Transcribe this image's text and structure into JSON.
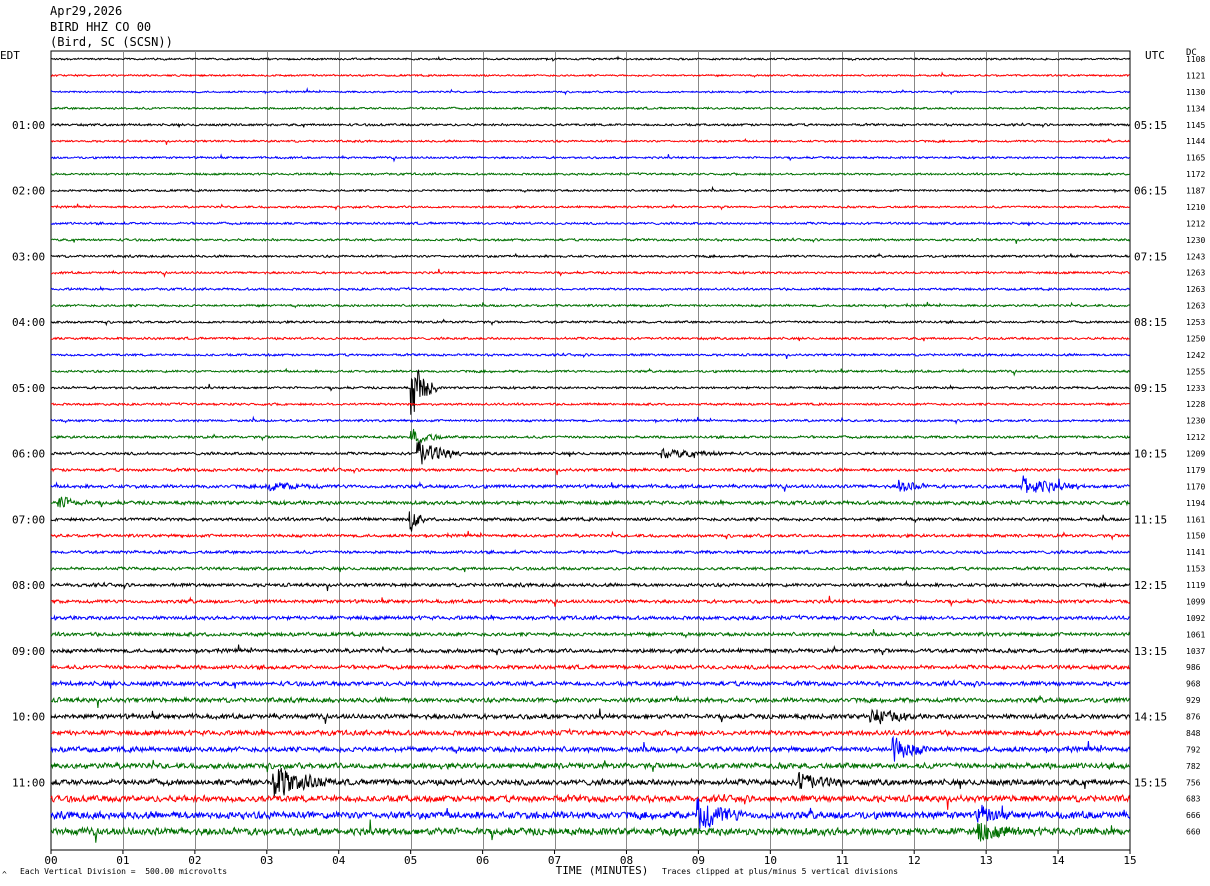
{
  "header": {
    "date": "Apr29,2026",
    "station": "BIRD HHZ CO 00",
    "location": "(Bird, SC (SCSN))"
  },
  "left_tz": "EDT",
  "right_tz": "UTC",
  "dc_label": "DC",
  "footer": {
    "scale": "Each Vertical Division =  500.00 microvolts",
    "clip_note": "Traces clipped at plus/minus 5 vertical divisions",
    "corner_mark": "^"
  },
  "chart_data": {
    "type": "line",
    "xlabel": "TIME (MINUTES)",
    "xlim": [
      0,
      15
    ],
    "x_ticks": [
      "00",
      "01",
      "02",
      "03",
      "04",
      "05",
      "06",
      "07",
      "08",
      "09",
      "10",
      "11",
      "12",
      "13",
      "14",
      "15"
    ],
    "rows_per_hour": 4,
    "trace_colors": [
      "#000000",
      "#ff0000",
      "#0000ff",
      "#007000"
    ],
    "left_hour_labels": [
      "01:00",
      "02:00",
      "03:00",
      "04:00",
      "05:00",
      "06:00",
      "07:00",
      "08:00",
      "09:00",
      "10:00",
      "11:00"
    ],
    "right_hour_labels": [
      "05:15",
      "06:15",
      "07:15",
      "08:15",
      "09:15",
      "10:15",
      "11:15",
      "12:15",
      "13:15",
      "14:15",
      "15:15"
    ],
    "dc_offsets": [
      1108,
      1121,
      1130,
      1134,
      1145,
      1144,
      1165,
      1172,
      1187,
      1210,
      1212,
      1230,
      1243,
      1263,
      1263,
      1263,
      1253,
      1250,
      1242,
      1255,
      1233,
      1228,
      1230,
      1212,
      1209,
      1179,
      1170,
      1194,
      1161,
      1150,
      1141,
      1153,
      1119,
      1099,
      1092,
      1061,
      1037,
      986,
      968,
      929,
      876,
      848,
      792,
      782,
      756,
      683,
      666,
      660
    ],
    "noise_level": [
      0.8,
      0.8,
      0.8,
      0.9,
      1,
      0.9,
      0.9,
      0.9,
      0.9,
      0.9,
      1,
      1,
      1,
      1,
      1,
      1,
      1,
      1,
      1,
      1,
      1,
      1,
      1,
      1.1,
      1.2,
      1.3,
      1.5,
      1.6,
      1.4,
      1.3,
      1.3,
      1.3,
      1.5,
      1.5,
      1.6,
      1.6,
      1.7,
      1.7,
      1.9,
      2,
      2.1,
      2.1,
      2.3,
      2.4,
      2.5,
      2.8,
      3.2,
      3.2
    ],
    "events": [
      {
        "row": 20,
        "minute": 5.02,
        "amp": 35,
        "dur": 0.35
      },
      {
        "row": 23,
        "minute": 5.02,
        "amp": 10,
        "dur": 0.45
      },
      {
        "row": 24,
        "minute": 5.1,
        "amp": 16,
        "dur": 0.6
      },
      {
        "row": 24,
        "minute": 8.5,
        "amp": 5,
        "dur": 1.0
      },
      {
        "row": 26,
        "minute": 3.0,
        "amp": 5,
        "dur": 0.8
      },
      {
        "row": 26,
        "minute": 11.8,
        "amp": 8,
        "dur": 0.4
      },
      {
        "row": 26,
        "minute": 13.5,
        "amp": 12,
        "dur": 0.8
      },
      {
        "row": 27,
        "minute": 0.1,
        "amp": 8,
        "dur": 0.4
      },
      {
        "row": 28,
        "minute": 5.0,
        "amp": 14,
        "dur": 0.2
      },
      {
        "row": 40,
        "minute": 11.4,
        "amp": 10,
        "dur": 0.6
      },
      {
        "row": 42,
        "minute": 11.7,
        "amp": 15,
        "dur": 0.5
      },
      {
        "row": 44,
        "minute": 3.1,
        "amp": 20,
        "dur": 0.8
      },
      {
        "row": 44,
        "minute": 10.4,
        "amp": 10,
        "dur": 0.6
      },
      {
        "row": 46,
        "minute": 9.0,
        "amp": 20,
        "dur": 0.6
      },
      {
        "row": 46,
        "minute": 12.9,
        "amp": 10,
        "dur": 0.4
      },
      {
        "row": 47,
        "minute": 12.9,
        "amp": 10,
        "dur": 0.6
      }
    ]
  }
}
